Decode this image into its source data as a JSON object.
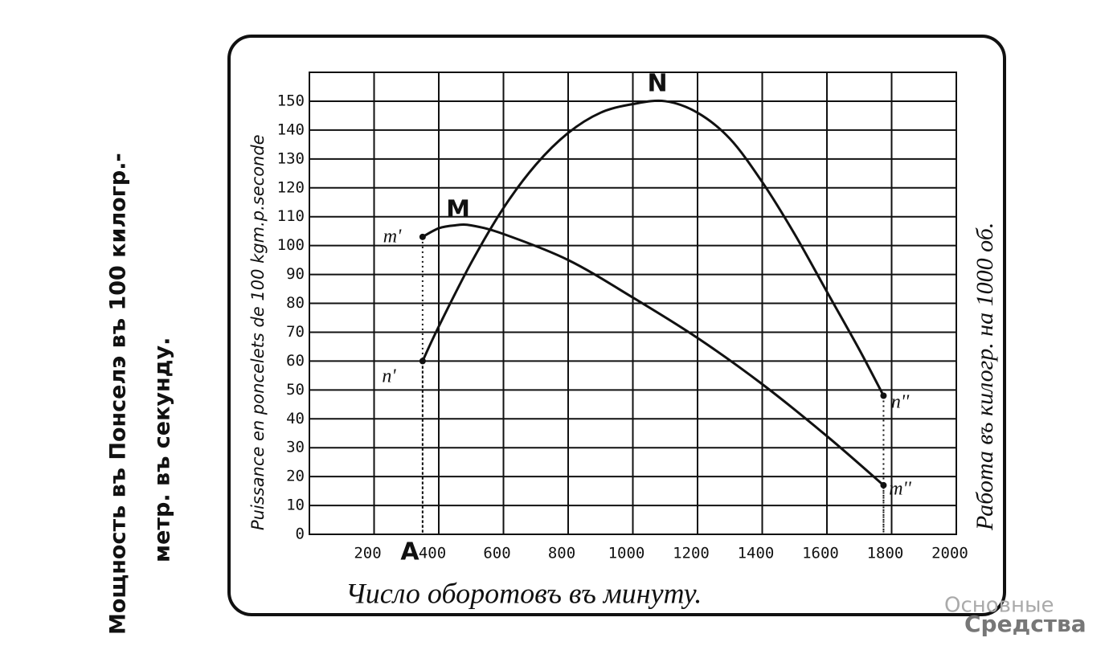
{
  "chart_data": {
    "type": "line",
    "ylabel_outer": [
      "Мощность въ Понселэ въ 100 килогр.-",
      "метр. въ секунду."
    ],
    "ylabel": "Puissance en poncelets de 100 kgm.p.seconde",
    "y2label": "Работа въ килогр. на 1000 об.",
    "xlabel": "Число оборотовъ въ минуту.",
    "watermark": [
      "Основные",
      "Средства"
    ],
    "annotations": [
      "N",
      "M",
      "m'",
      "n'",
      "n''",
      "m''",
      "A"
    ],
    "xlim": [
      0,
      2000
    ],
    "ylim": [
      0,
      160
    ],
    "xticks": [
      200,
      400,
      600,
      800,
      1000,
      1200,
      1400,
      1600,
      1800,
      2000
    ],
    "yticks": [
      0,
      10,
      20,
      30,
      40,
      50,
      60,
      70,
      80,
      90,
      100,
      110,
      120,
      130,
      140,
      150
    ],
    "grid": true,
    "series": [
      {
        "name": "N",
        "color": "#111111",
        "x": [
          350,
          400,
          500,
          600,
          700,
          800,
          900,
          1000,
          1100,
          1200,
          1300,
          1400,
          1500,
          1600,
          1700,
          1775
        ],
        "values": [
          60,
          72,
          94,
          113,
          128,
          139,
          146,
          149,
          150,
          146,
          137,
          122,
          104,
          84,
          64,
          48
        ]
      },
      {
        "name": "M",
        "color": "#111111",
        "x": [
          350,
          400,
          450,
          500,
          600,
          800,
          1000,
          1200,
          1400,
          1600,
          1775
        ],
        "values": [
          103,
          106,
          107,
          107,
          104,
          95,
          82,
          68,
          52,
          34,
          17
        ]
      }
    ]
  }
}
